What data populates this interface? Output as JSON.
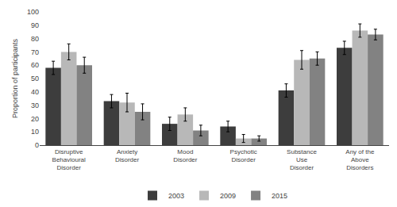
{
  "chart_data": {
    "type": "bar",
    "ylabel": "Proportion of participants",
    "categories": [
      "Disruptive\nBehavioural\nDisorder",
      "Anxiety\nDisorder",
      "Mood\nDisorder",
      "Psychotic\nDisorder",
      "Substance\nUse\nDisorder",
      "Any of the\nAbove\nDisorders"
    ],
    "series": [
      {
        "name": "2003",
        "color": "#3d3d3d",
        "values": [
          58,
          33,
          16,
          14,
          41,
          73
        ],
        "errors": [
          5,
          5,
          5,
          4,
          5,
          5
        ]
      },
      {
        "name": "2009",
        "color": "#b8b8b8",
        "values": [
          70,
          32,
          23,
          5,
          64,
          86
        ],
        "errors": [
          6,
          7,
          5,
          3,
          7,
          5
        ]
      },
      {
        "name": "2015",
        "color": "#828282",
        "values": [
          60,
          25,
          11,
          5,
          65,
          83
        ],
        "errors": [
          6,
          6,
          4,
          2,
          5,
          4
        ]
      }
    ],
    "ylim": [
      0,
      100
    ],
    "yticks": [
      0,
      10,
      20,
      30,
      40,
      50,
      60,
      70,
      80,
      90,
      100
    ],
    "grid": false,
    "legend": "bottom"
  }
}
